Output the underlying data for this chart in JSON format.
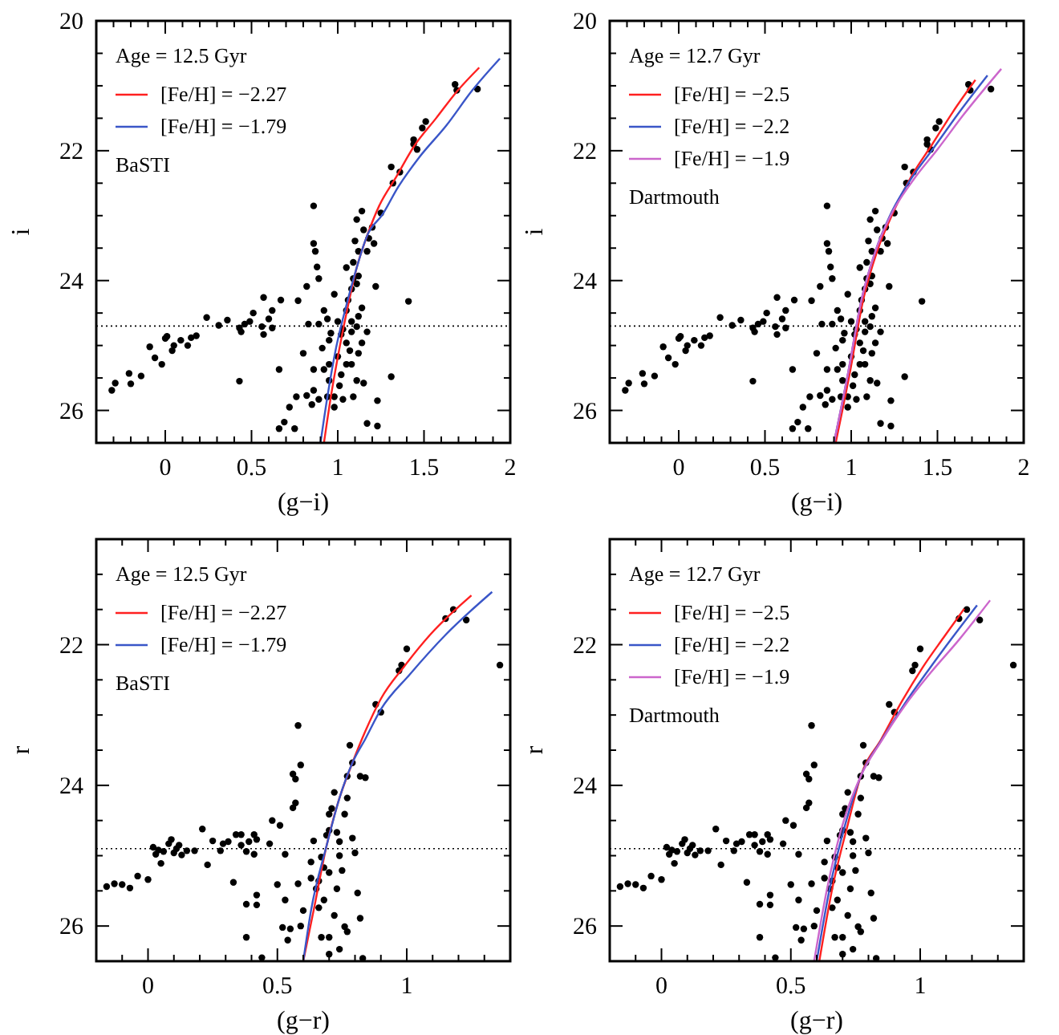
{
  "chart_data": [
    {
      "type": "scatter",
      "xlabel": "(g−i)",
      "ylabel": "i",
      "legend_title": "Age = 12.5 Gyr",
      "annotations": [
        "BaSTI"
      ],
      "legend": "top left",
      "xlim": [
        -0.4,
        2
      ],
      "ylim": [
        26.5,
        20
      ],
      "xticks": [
        {
          "value": -0.3,
          "label": null
        },
        {
          "value": -0.2,
          "label": null
        },
        {
          "value": -0.1,
          "label": null
        },
        0,
        {
          "value": 0.1,
          "label": null
        },
        {
          "value": 0.2,
          "label": null
        },
        {
          "value": 0.3,
          "label": null
        },
        {
          "value": 0.4,
          "label": null
        },
        0.5,
        {
          "value": 0.6,
          "label": null
        },
        {
          "value": 0.7,
          "label": null
        },
        {
          "value": 0.8,
          "label": null
        },
        {
          "value": 0.9,
          "label": null
        },
        1,
        {
          "value": 1.1,
          "label": null
        },
        {
          "value": 1.2,
          "label": null
        },
        {
          "value": 1.3,
          "label": null
        },
        {
          "value": 1.4,
          "label": null
        },
        1.5,
        {
          "value": 1.6,
          "label": null
        },
        {
          "value": 1.7,
          "label": null
        },
        {
          "value": 1.8,
          "label": null
        },
        {
          "value": 1.9,
          "label": null
        },
        2
      ],
      "yticks": [
        20,
        {
          "value": 20.5,
          "label": null
        },
        {
          "value": 21,
          "label": null
        },
        {
          "value": 21.5,
          "label": null
        },
        22,
        {
          "value": 22.5,
          "label": null
        },
        {
          "value": 23,
          "label": null
        },
        {
          "value": 23.5,
          "label": null
        },
        24,
        {
          "value": 24.5,
          "label": null
        },
        {
          "value": 25,
          "label": null
        },
        {
          "value": 25.5,
          "label": null
        },
        26
      ],
      "ref_lines": [
        {
          "axis": "y",
          "value": 24.7,
          "color": "#000000",
          "line_style": "dotted"
        }
      ],
      "series": [
        {
          "type": "scatter",
          "color": "#000000",
          "marker": "circle",
          "x": [
            -0.31,
            -0.29,
            -0.21,
            -0.2,
            -0.14,
            -0.09,
            -0.06,
            -0.02,
            0.0,
            0.01,
            0.04,
            0.05,
            0.09,
            0.13,
            0.15,
            0.18,
            0.24,
            0.31,
            0.36,
            0.43,
            0.44,
            0.46,
            0.49,
            0.51,
            0.56,
            0.57,
            0.57,
            0.6,
            0.62,
            0.62,
            0.67,
            0.43,
            0.66,
            0.77,
            0.82,
            0.83,
            0.86,
            0.86,
            0.87,
            0.88,
            0.89,
            0.8,
            0.86,
            0.86,
            0.85,
            0.82,
            0.76,
            0.72,
            0.69,
            0.66,
            0.75,
            0.89,
            0.91,
            0.92,
            0.94,
            0.95,
            0.95,
            0.94,
            0.98,
            1.0,
            1.02,
            1.03,
            1.05,
            1.06,
            1.05,
            1.08,
            1.09,
            1.11,
            1.1,
            1.12,
            1.14,
            1.15,
            1.17,
            1.18,
            1.2,
            1.21,
            1.09,
            1.11,
            1.12,
            1.08,
            1.11,
            1.12,
            1.14,
            1.07,
            1.05,
            1.02,
            1.11,
            1.15,
            1.09,
            0.98,
            1.03,
            1.17,
            1.23,
            1.23,
            1.22,
            1.31,
            1.41,
            1.25,
            1.31,
            1.32,
            1.36,
            1.44,
            1.44,
            1.46,
            1.49,
            1.51,
            1.68,
            1.69,
            1.81,
            0.96,
            0.92,
            1.0,
            1.05,
            1.08,
            0.95,
            0.89,
            1.08,
            1.12,
            1.17,
            1.14,
            0.98,
            1.01
          ],
          "values": [
            25.69,
            25.58,
            25.43,
            25.59,
            25.47,
            25.02,
            25.19,
            25.29,
            24.89,
            24.86,
            25.08,
            25.0,
            24.92,
            25.0,
            24.88,
            24.85,
            24.57,
            24.69,
            24.61,
            24.73,
            24.79,
            24.67,
            24.63,
            24.5,
            24.71,
            24.26,
            24.83,
            24.59,
            24.46,
            24.73,
            24.3,
            25.55,
            25.37,
            24.31,
            24.09,
            24.67,
            22.85,
            23.43,
            23.55,
            23.79,
            23.97,
            25.12,
            25.37,
            25.69,
            25.91,
            25.77,
            25.79,
            25.95,
            26.18,
            26.28,
            26.28,
            25.83,
            25.04,
            24.46,
            24.59,
            24.92,
            25.29,
            25.79,
            24.21,
            24.63,
            24.83,
            24.75,
            24.46,
            24.3,
            23.8,
            24.13,
            23.72,
            23.06,
            23.39,
            23.55,
            22.93,
            23.22,
            23.55,
            23.35,
            23.18,
            23.43,
            23.97,
            24.05,
            23.93,
            24.63,
            24.71,
            24.55,
            24.96,
            25.08,
            25.29,
            25.45,
            25.54,
            25.58,
            25.79,
            25.79,
            25.83,
            26.2,
            25.85,
            26.24,
            24.09,
            25.48,
            24.32,
            22.96,
            22.25,
            22.5,
            22.33,
            21.83,
            21.9,
            21.98,
            21.65,
            21.55,
            20.98,
            21.07,
            21.05,
            24.81,
            25.37,
            25.17,
            24.96,
            24.79,
            25.54,
            24.67,
            25.29,
            25.12,
            24.79,
            24.42,
            25.95,
            25.62
          ]
        },
        {
          "type": "line",
          "name": "[Fe/H] = −2.27",
          "color": "#ff2020",
          "x": [
            0.92,
            0.96,
            1.01,
            1.06,
            1.11,
            1.17,
            1.24,
            1.34,
            1.44,
            1.57,
            1.69,
            1.82
          ],
          "values": [
            26.5,
            25.79,
            25.04,
            24.38,
            23.8,
            23.31,
            22.85,
            22.4,
            21.94,
            21.5,
            21.09,
            20.72
          ]
        },
        {
          "type": "line",
          "name": "[Fe/H] = −1.79",
          "color": "#3a56c8",
          "x": [
            0.9,
            0.94,
            0.99,
            1.05,
            1.11,
            1.17,
            1.26,
            1.35,
            1.47,
            1.63,
            1.78,
            1.94
          ],
          "values": [
            26.5,
            25.79,
            25.04,
            24.38,
            23.8,
            23.31,
            22.98,
            22.56,
            22.11,
            21.61,
            21.07,
            20.58
          ]
        }
      ]
    },
    {
      "type": "scatter",
      "xlabel": "(g−i)",
      "ylabel": "i",
      "legend_title": "Age = 12.7 Gyr",
      "annotations": [
        "Dartmouth"
      ],
      "legend": "top left",
      "xlim": [
        -0.4,
        2
      ],
      "ylim": [
        26.5,
        20
      ],
      "xticks": [
        {
          "value": -0.3,
          "label": null
        },
        {
          "value": -0.2,
          "label": null
        },
        {
          "value": -0.1,
          "label": null
        },
        0,
        {
          "value": 0.1,
          "label": null
        },
        {
          "value": 0.2,
          "label": null
        },
        {
          "value": 0.3,
          "label": null
        },
        {
          "value": 0.4,
          "label": null
        },
        0.5,
        {
          "value": 0.6,
          "label": null
        },
        {
          "value": 0.7,
          "label": null
        },
        {
          "value": 0.8,
          "label": null
        },
        {
          "value": 0.9,
          "label": null
        },
        1,
        {
          "value": 1.1,
          "label": null
        },
        {
          "value": 1.2,
          "label": null
        },
        {
          "value": 1.3,
          "label": null
        },
        {
          "value": 1.4,
          "label": null
        },
        1.5,
        {
          "value": 1.6,
          "label": null
        },
        {
          "value": 1.7,
          "label": null
        },
        {
          "value": 1.8,
          "label": null
        },
        {
          "value": 1.9,
          "label": null
        },
        2
      ],
      "yticks": [
        20,
        {
          "value": 20.5,
          "label": null
        },
        {
          "value": 21,
          "label": null
        },
        {
          "value": 21.5,
          "label": null
        },
        22,
        {
          "value": 22.5,
          "label": null
        },
        {
          "value": 23,
          "label": null
        },
        {
          "value": 23.5,
          "label": null
        },
        24,
        {
          "value": 24.5,
          "label": null
        },
        {
          "value": 25,
          "label": null
        },
        {
          "value": 25.5,
          "label": null
        },
        26
      ],
      "ref_lines": [
        {
          "axis": "y",
          "value": 24.7,
          "color": "#000000",
          "line_style": "dotted"
        }
      ],
      "series": [
        {
          "type": "scatter",
          "color": "#000000",
          "marker": "circle",
          "x": [
            -0.31,
            -0.29,
            -0.21,
            -0.2,
            -0.14,
            -0.09,
            -0.06,
            -0.02,
            0.0,
            0.01,
            0.04,
            0.05,
            0.09,
            0.13,
            0.15,
            0.18,
            0.24,
            0.31,
            0.36,
            0.43,
            0.44,
            0.46,
            0.49,
            0.51,
            0.56,
            0.57,
            0.57,
            0.6,
            0.62,
            0.62,
            0.67,
            0.43,
            0.66,
            0.77,
            0.82,
            0.83,
            0.86,
            0.86,
            0.87,
            0.88,
            0.89,
            0.8,
            0.86,
            0.86,
            0.85,
            0.82,
            0.76,
            0.72,
            0.69,
            0.66,
            0.75,
            0.89,
            0.91,
            0.92,
            0.94,
            0.95,
            0.95,
            0.94,
            0.98,
            1.0,
            1.02,
            1.03,
            1.05,
            1.06,
            1.05,
            1.08,
            1.09,
            1.11,
            1.1,
            1.12,
            1.14,
            1.15,
            1.17,
            1.18,
            1.2,
            1.21,
            1.09,
            1.11,
            1.12,
            1.08,
            1.11,
            1.12,
            1.14,
            1.07,
            1.05,
            1.02,
            1.11,
            1.15,
            1.09,
            0.98,
            1.03,
            1.17,
            1.23,
            1.23,
            1.22,
            1.31,
            1.41,
            1.25,
            1.31,
            1.32,
            1.36,
            1.44,
            1.44,
            1.46,
            1.49,
            1.51,
            1.68,
            1.69,
            1.81,
            0.96,
            0.92,
            1.0,
            1.05,
            1.08,
            0.95,
            0.89,
            1.08,
            1.12,
            1.17,
            1.14,
            0.98,
            1.01
          ],
          "values": [
            25.69,
            25.58,
            25.43,
            25.59,
            25.47,
            25.02,
            25.19,
            25.29,
            24.89,
            24.86,
            25.08,
            25.0,
            24.92,
            25.0,
            24.88,
            24.85,
            24.57,
            24.69,
            24.61,
            24.73,
            24.79,
            24.67,
            24.63,
            24.5,
            24.71,
            24.26,
            24.83,
            24.59,
            24.46,
            24.73,
            24.3,
            25.55,
            25.37,
            24.31,
            24.09,
            24.67,
            22.85,
            23.43,
            23.55,
            23.79,
            23.97,
            25.12,
            25.37,
            25.69,
            25.91,
            25.77,
            25.79,
            25.95,
            26.18,
            26.28,
            26.28,
            25.83,
            25.04,
            24.46,
            24.59,
            24.92,
            25.29,
            25.79,
            24.21,
            24.63,
            24.83,
            24.75,
            24.46,
            24.3,
            23.8,
            24.13,
            23.72,
            23.06,
            23.39,
            23.55,
            22.93,
            23.22,
            23.55,
            23.35,
            23.18,
            23.43,
            23.97,
            24.05,
            23.93,
            24.63,
            24.71,
            24.55,
            24.96,
            25.08,
            25.29,
            25.45,
            25.54,
            25.58,
            25.79,
            25.79,
            25.83,
            26.2,
            25.85,
            26.24,
            24.09,
            25.48,
            24.32,
            22.96,
            22.25,
            22.5,
            22.33,
            21.83,
            21.9,
            21.98,
            21.65,
            21.55,
            20.98,
            21.07,
            21.05,
            24.81,
            25.37,
            25.17,
            24.96,
            24.79,
            25.54,
            24.67,
            25.29,
            25.12,
            24.79,
            24.42,
            25.95,
            25.62
          ]
        },
        {
          "type": "line",
          "name": "[Fe/H] = −2.5",
          "color": "#ff2020",
          "x": [
            0.91,
            0.99,
            1.07,
            1.15,
            1.24,
            1.35,
            1.47,
            1.59,
            1.72
          ],
          "values": [
            26.5,
            25.45,
            24.29,
            23.55,
            22.97,
            22.39,
            21.9,
            21.4,
            20.91
          ]
        },
        {
          "type": "line",
          "name": "[Fe/H] = −2.2",
          "color": "#3a56c8",
          "x": [
            0.9,
            0.98,
            1.06,
            1.14,
            1.23,
            1.35,
            1.48,
            1.62,
            1.79
          ],
          "values": [
            26.5,
            25.45,
            24.29,
            23.55,
            22.97,
            22.42,
            21.95,
            21.43,
            20.84
          ]
        },
        {
          "type": "line",
          "name": "[Fe/H] = −1.9",
          "color": "#cc66cc",
          "x": [
            0.9,
            0.98,
            1.06,
            1.14,
            1.23,
            1.36,
            1.5,
            1.65,
            1.87
          ],
          "values": [
            26.5,
            25.45,
            24.29,
            23.55,
            22.99,
            22.45,
            21.98,
            21.45,
            20.74
          ]
        }
      ]
    },
    {
      "type": "scatter",
      "xlabel": "(g−r)",
      "ylabel": "r",
      "legend_title": "Age = 12.5 Gyr",
      "annotations": [
        "BaSTI"
      ],
      "legend": "top left",
      "xlim": [
        -0.2,
        1.4
      ],
      "ylim": [
        26.5,
        20.5
      ],
      "xticks": [
        {
          "value": -0.1,
          "label": null
        },
        0,
        {
          "value": 0.1,
          "label": null
        },
        {
          "value": 0.2,
          "label": null
        },
        {
          "value": 0.3,
          "label": null
        },
        {
          "value": 0.4,
          "label": null
        },
        0.5,
        {
          "value": 0.6,
          "label": null
        },
        {
          "value": 0.7,
          "label": null
        },
        {
          "value": 0.8,
          "label": null
        },
        {
          "value": 0.9,
          "label": null
        },
        1,
        {
          "value": 1.1,
          "label": null
        },
        {
          "value": 1.2,
          "label": null
        },
        {
          "value": 1.3,
          "label": null
        }
      ],
      "yticks": [
        {
          "value": 21,
          "label": null
        },
        {
          "value": 21.5,
          "label": null
        },
        22,
        {
          "value": 22.5,
          "label": null
        },
        {
          "value": 23,
          "label": null
        },
        {
          "value": 23.5,
          "label": null
        },
        24,
        {
          "value": 24.5,
          "label": null
        },
        {
          "value": 25,
          "label": null
        },
        {
          "value": 25.5,
          "label": null
        },
        26
      ],
      "ref_lines": [
        {
          "axis": "y",
          "value": 24.9,
          "color": "#000000",
          "line_style": "dotted"
        }
      ],
      "series": [
        {
          "type": "scatter",
          "color": "#000000",
          "marker": "circle",
          "x": [
            -0.16,
            -0.13,
            -0.1,
            -0.07,
            -0.04,
            0.0,
            0.02,
            0.03,
            0.04,
            0.05,
            0.06,
            0.08,
            0.09,
            0.1,
            0.11,
            0.12,
            0.13,
            0.15,
            0.18,
            0.21,
            0.23,
            0.25,
            0.28,
            0.29,
            0.31,
            0.33,
            0.34,
            0.36,
            0.36,
            0.38,
            0.39,
            0.41,
            0.41,
            0.42,
            0.38,
            0.42,
            0.42,
            0.38,
            0.44,
            0.47,
            0.48,
            0.51,
            0.53,
            0.5,
            0.53,
            0.52,
            0.54,
            0.55,
            0.56,
            0.57,
            0.59,
            0.57,
            0.58,
            0.56,
            0.58,
            0.6,
            0.59,
            0.63,
            0.64,
            0.65,
            0.66,
            0.67,
            0.68,
            0.69,
            0.7,
            0.7,
            0.71,
            0.72,
            0.73,
            0.74,
            0.75,
            0.73,
            0.72,
            0.7,
            0.76,
            0.76,
            0.77,
            0.77,
            0.78,
            0.79,
            0.79,
            0.8,
            0.81,
            0.82,
            0.77,
            0.82,
            0.84,
            0.83,
            0.7,
            0.74,
            0.88,
            0.9,
            0.98,
            0.97,
            1.0,
            1.15,
            1.18,
            1.23,
            1.36,
            0.67,
            0.63,
            0.7,
            0.74,
            0.66,
            0.68
          ],
          "values": [
            25.44,
            25.4,
            25.41,
            25.46,
            25.29,
            25.34,
            24.88,
            24.98,
            24.92,
            25.11,
            24.94,
            24.83,
            24.77,
            24.96,
            24.9,
            24.85,
            24.99,
            24.93,
            24.93,
            24.62,
            25.13,
            24.79,
            24.93,
            24.83,
            24.8,
            25.38,
            24.7,
            24.85,
            24.7,
            24.94,
            24.8,
            24.98,
            24.7,
            24.77,
            25.69,
            25.56,
            25.7,
            26.16,
            26.45,
            24.83,
            24.5,
            24.57,
            24.98,
            25.41,
            25.63,
            26.02,
            26.2,
            26.04,
            23.84,
            23.91,
            23.71,
            24.25,
            23.15,
            24.32,
            25.4,
            25.78,
            26.0,
            25.09,
            24.79,
            25.47,
            25.74,
            26.16,
            25.17,
            24.71,
            24.41,
            24.64,
            24.33,
            24.1,
            24.67,
            25.0,
            25.21,
            25.47,
            25.85,
            26.16,
            26.01,
            24.41,
            23.87,
            24.18,
            23.43,
            23.68,
            24.75,
            24.96,
            25.53,
            25.89,
            26.08,
            23.87,
            23.89,
            26.46,
            26.4,
            26.33,
            22.85,
            22.96,
            22.29,
            22.37,
            22.06,
            21.63,
            21.5,
            21.65,
            22.29,
            25.02,
            25.32,
            25.24,
            24.8,
            25.36,
            25.63
          ]
        },
        {
          "type": "line",
          "name": "[Fe/H] = −2.27",
          "color": "#ff2020",
          "x": [
            0.6,
            0.64,
            0.69,
            0.74,
            0.79,
            0.84,
            0.9,
            0.99,
            1.09,
            1.25
          ],
          "values": [
            26.5,
            25.78,
            24.86,
            24.18,
            23.68,
            23.23,
            22.77,
            22.31,
            21.86,
            21.3
          ]
        },
        {
          "type": "line",
          "name": "[Fe/H] = −1.79",
          "color": "#3a56c8",
          "x": [
            0.6,
            0.63,
            0.69,
            0.74,
            0.79,
            0.84,
            0.9,
            1.01,
            1.15,
            1.33
          ],
          "values": [
            26.5,
            25.78,
            24.86,
            24.18,
            23.68,
            23.34,
            22.92,
            22.43,
            21.86,
            21.25
          ]
        }
      ]
    },
    {
      "type": "scatter",
      "xlabel": "(g−r)",
      "ylabel": "r",
      "legend_title": "Age = 12.7 Gyr",
      "annotations": [
        "Dartmouth"
      ],
      "legend": "top left",
      "xlim": [
        -0.2,
        1.4
      ],
      "ylim": [
        26.5,
        20.5
      ],
      "xticks": [
        {
          "value": -0.1,
          "label": null
        },
        0,
        {
          "value": 0.1,
          "label": null
        },
        {
          "value": 0.2,
          "label": null
        },
        {
          "value": 0.3,
          "label": null
        },
        {
          "value": 0.4,
          "label": null
        },
        0.5,
        {
          "value": 0.6,
          "label": null
        },
        {
          "value": 0.7,
          "label": null
        },
        {
          "value": 0.8,
          "label": null
        },
        {
          "value": 0.9,
          "label": null
        },
        1,
        {
          "value": 1.1,
          "label": null
        },
        {
          "value": 1.2,
          "label": null
        },
        {
          "value": 1.3,
          "label": null
        }
      ],
      "yticks": [
        {
          "value": 21,
          "label": null
        },
        {
          "value": 21.5,
          "label": null
        },
        22,
        {
          "value": 22.5,
          "label": null
        },
        {
          "value": 23,
          "label": null
        },
        {
          "value": 23.5,
          "label": null
        },
        24,
        {
          "value": 24.5,
          "label": null
        },
        {
          "value": 25,
          "label": null
        },
        {
          "value": 25.5,
          "label": null
        },
        26
      ],
      "ref_lines": [
        {
          "axis": "y",
          "value": 24.9,
          "color": "#000000",
          "line_style": "dotted"
        }
      ],
      "series": [
        {
          "type": "scatter",
          "color": "#000000",
          "marker": "circle",
          "x": [
            -0.16,
            -0.13,
            -0.1,
            -0.07,
            -0.04,
            0.0,
            0.02,
            0.03,
            0.04,
            0.05,
            0.06,
            0.08,
            0.09,
            0.1,
            0.11,
            0.12,
            0.13,
            0.15,
            0.18,
            0.21,
            0.23,
            0.25,
            0.28,
            0.29,
            0.31,
            0.33,
            0.34,
            0.36,
            0.36,
            0.38,
            0.39,
            0.41,
            0.41,
            0.42,
            0.38,
            0.42,
            0.42,
            0.38,
            0.44,
            0.47,
            0.48,
            0.51,
            0.53,
            0.5,
            0.53,
            0.52,
            0.54,
            0.55,
            0.56,
            0.57,
            0.59,
            0.57,
            0.58,
            0.56,
            0.58,
            0.6,
            0.59,
            0.63,
            0.64,
            0.65,
            0.66,
            0.67,
            0.68,
            0.69,
            0.7,
            0.7,
            0.71,
            0.72,
            0.73,
            0.74,
            0.75,
            0.73,
            0.72,
            0.7,
            0.76,
            0.76,
            0.77,
            0.77,
            0.78,
            0.79,
            0.79,
            0.8,
            0.81,
            0.82,
            0.77,
            0.82,
            0.84,
            0.83,
            0.7,
            0.74,
            0.88,
            0.9,
            0.98,
            0.97,
            1.0,
            1.15,
            1.18,
            1.23,
            1.36,
            0.67,
            0.63,
            0.7,
            0.74,
            0.66,
            0.68
          ],
          "values": [
            25.44,
            25.4,
            25.41,
            25.46,
            25.29,
            25.34,
            24.88,
            24.98,
            24.92,
            25.11,
            24.94,
            24.83,
            24.77,
            24.96,
            24.9,
            24.85,
            24.99,
            24.93,
            24.93,
            24.62,
            25.13,
            24.79,
            24.93,
            24.83,
            24.8,
            25.38,
            24.7,
            24.85,
            24.7,
            24.94,
            24.8,
            24.98,
            24.7,
            24.77,
            25.69,
            25.56,
            25.7,
            26.16,
            26.45,
            24.83,
            24.5,
            24.57,
            24.98,
            25.41,
            25.63,
            26.02,
            26.2,
            26.04,
            23.84,
            23.91,
            23.71,
            24.25,
            23.15,
            24.32,
            25.4,
            25.78,
            26.0,
            25.09,
            24.79,
            25.47,
            25.74,
            26.16,
            25.17,
            24.71,
            24.41,
            24.64,
            24.33,
            24.1,
            24.67,
            25.0,
            25.21,
            25.47,
            25.85,
            26.16,
            26.01,
            24.41,
            23.87,
            24.18,
            23.43,
            23.68,
            24.75,
            24.96,
            25.53,
            25.89,
            26.08,
            23.87,
            23.89,
            26.46,
            26.4,
            26.33,
            22.85,
            22.96,
            22.29,
            22.37,
            22.06,
            21.63,
            21.5,
            21.65,
            22.29,
            25.02,
            25.32,
            25.24,
            24.8,
            25.36,
            25.63
          ]
        },
        {
          "type": "line",
          "name": "[Fe/H] = −2.5",
          "color": "#ff2020",
          "x": [
            0.61,
            0.66,
            0.72,
            0.77,
            0.85,
            0.93,
            1.01,
            1.09,
            1.17
          ],
          "values": [
            26.5,
            25.47,
            24.56,
            23.87,
            23.34,
            22.8,
            22.32,
            21.9,
            21.49
          ]
        },
        {
          "type": "line",
          "name": "[Fe/H] = −2.2",
          "color": "#3a56c8",
          "x": [
            0.6,
            0.65,
            0.71,
            0.77,
            0.85,
            0.94,
            1.03,
            1.12,
            1.22
          ],
          "values": [
            26.5,
            25.47,
            24.56,
            23.87,
            23.36,
            22.84,
            22.37,
            21.92,
            21.44
          ]
        },
        {
          "type": "line",
          "name": "[Fe/H] = −1.9",
          "color": "#cc66cc",
          "x": [
            0.59,
            0.64,
            0.7,
            0.77,
            0.85,
            0.94,
            1.04,
            1.15,
            1.27
          ],
          "values": [
            26.5,
            25.47,
            24.56,
            23.87,
            23.37,
            22.87,
            22.4,
            21.93,
            21.37
          ]
        }
      ]
    }
  ]
}
